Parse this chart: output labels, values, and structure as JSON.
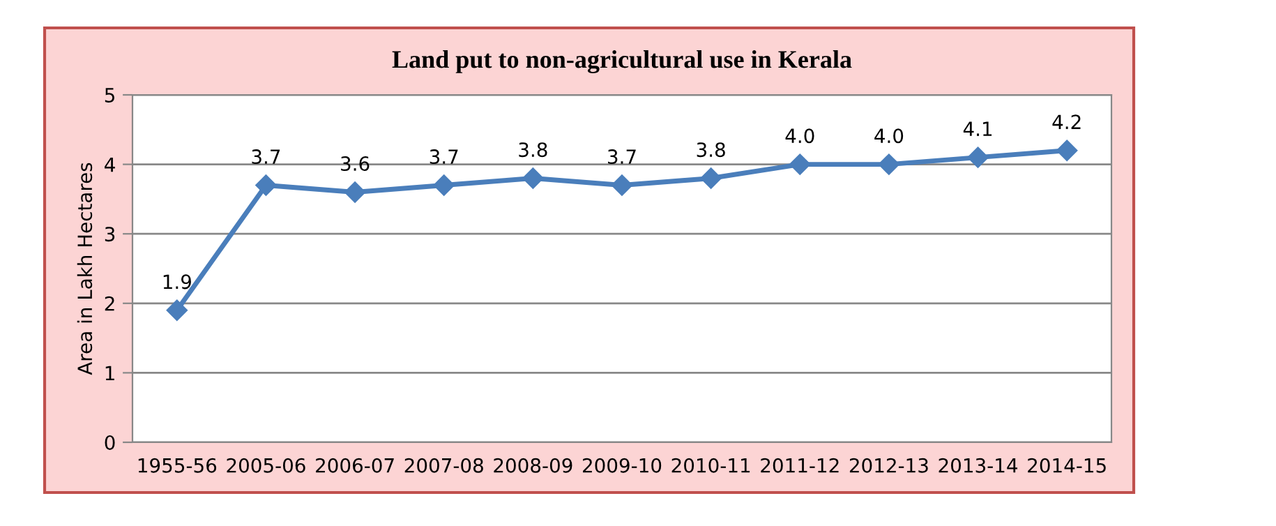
{
  "chart_data": {
    "type": "line",
    "title": "Land put to non-agricultural use in Kerala",
    "ylabel": "Area in Lakh Hectares",
    "categories": [
      "1955-56",
      "2005-06",
      "2006-07",
      "2007-08",
      "2008-09",
      "2009-10",
      "2010-11",
      "2011-12",
      "2012-13",
      "2013-14",
      "2014-15"
    ],
    "series": [
      {
        "color": "#4a7ebb",
        "values": [
          1.9,
          3.7,
          3.6,
          3.7,
          3.8,
          3.7,
          3.8,
          4.0,
          4.0,
          4.1,
          4.2
        ],
        "value_labels": [
          "1.9",
          "3.7",
          "3.6",
          "3.7",
          "3.8",
          "3.7",
          "3.8",
          "4.0",
          "4.0",
          "4.1",
          "4.2"
        ]
      }
    ],
    "ylim": [
      0,
      5
    ],
    "yticks": [
      0,
      1,
      2,
      3,
      4,
      5
    ],
    "grid": "y",
    "marker": "diamond",
    "line_style": "solid"
  }
}
